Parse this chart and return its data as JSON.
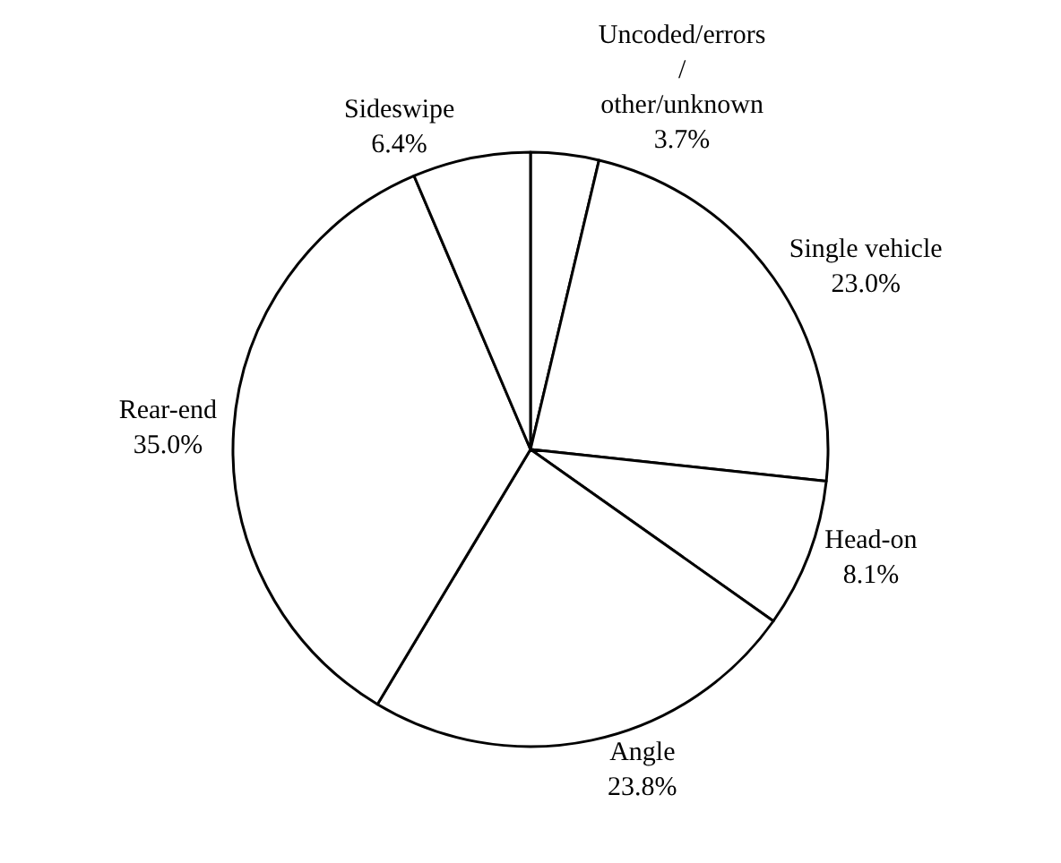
{
  "chart_data": {
    "type": "pie",
    "categories": [
      "Uncoded/errors\n/\nother/unknown",
      "Single vehicle",
      "Head-on",
      "Angle",
      "Rear-end",
      "Sideswipe"
    ],
    "values": [
      3.7,
      23.0,
      8.1,
      23.8,
      35.0,
      6.4
    ],
    "value_labels": [
      "3.7%",
      "23.0%",
      "8.1%",
      "23.8%",
      "35.0%",
      "6.4%"
    ],
    "colors": [
      "#ffffff",
      "#ffffff",
      "#ffffff",
      "#ffffff",
      "#ffffff",
      "#ffffff"
    ],
    "legend": false
  }
}
